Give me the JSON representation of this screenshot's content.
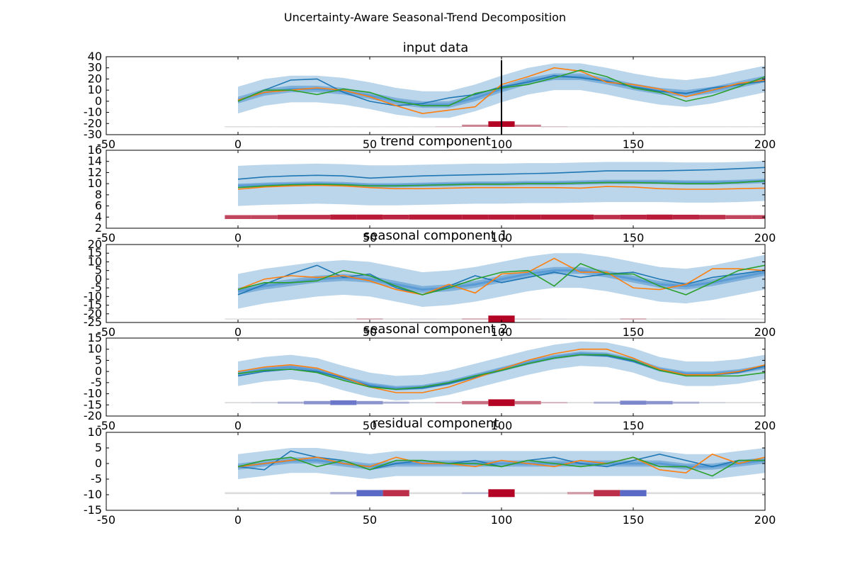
{
  "figure": {
    "suptitle": "Uncertainty-Aware Seasonal-Trend Decomposition"
  },
  "colors": {
    "band_outer": "#b7d4ea",
    "band_inner": "#6fa6d6",
    "mean": "#5a9bd5",
    "series": [
      "#1f77b4",
      "#ff7f0e",
      "#2ca02c"
    ],
    "heat_pos": "#b40426",
    "heat_neg": "#3b4cc0",
    "axis": "#000000"
  },
  "chart_data": [
    {
      "type": "line",
      "title": "input data",
      "xlim": [
        -50,
        200
      ],
      "ylim": [
        -30,
        40
      ],
      "xticks": [
        -50,
        0,
        50,
        100,
        150,
        200
      ],
      "yticks": [
        -30,
        -20,
        -10,
        0,
        10,
        20,
        30,
        40
      ],
      "x": [
        0,
        10,
        20,
        30,
        40,
        50,
        60,
        70,
        80,
        90,
        100,
        110,
        120,
        130,
        140,
        150,
        160,
        170,
        180,
        190,
        200
      ],
      "mean": [
        1,
        8,
        11,
        11,
        9,
        5,
        0,
        -3,
        -3,
        3,
        11,
        18,
        22,
        22,
        18,
        13,
        9,
        7,
        10,
        15,
        20
      ],
      "band_halfwidth": 12,
      "inner_halfwidth": 3,
      "series": [
        {
          "values": [
            0,
            10,
            19,
            20,
            8,
            0,
            -4,
            -2,
            3,
            6,
            13,
            17,
            23,
            21,
            18,
            13,
            9,
            7,
            12,
            15,
            18
          ]
        },
        {
          "values": [
            1,
            8,
            10,
            12,
            10,
            4,
            -4,
            -11,
            -8,
            -5,
            15,
            22,
            30,
            27,
            17,
            15,
            11,
            4,
            10,
            16,
            19
          ]
        },
        {
          "values": [
            0,
            10,
            10,
            6,
            11,
            8,
            0,
            -4,
            -4,
            7,
            12,
            15,
            21,
            28,
            22,
            12,
            8,
            0,
            5,
            13,
            22
          ]
        }
      ],
      "vline_x": 100,
      "heat_baseline": -23,
      "heat": [
        0,
        0,
        0,
        0,
        0,
        0,
        0,
        0,
        0.1,
        0.4,
        1,
        0.4,
        0.1,
        0,
        0,
        0,
        0,
        0,
        0,
        0,
        0
      ],
      "heat_height": 5
    },
    {
      "type": "line",
      "title": "trend component",
      "xlim": [
        -50,
        200
      ],
      "ylim": [
        2,
        16
      ],
      "xticks": [
        -50,
        0,
        50,
        100,
        150,
        200
      ],
      "yticks": [
        2,
        4,
        6,
        8,
        10,
        12,
        14,
        16
      ],
      "x": [
        0,
        10,
        20,
        30,
        40,
        50,
        60,
        70,
        80,
        90,
        100,
        110,
        120,
        130,
        140,
        150,
        160,
        170,
        180,
        190,
        200
      ],
      "mean": [
        9.6,
        9.8,
        9.9,
        10.0,
        9.9,
        9.7,
        9.7,
        9.8,
        9.9,
        10.0,
        10.0,
        10.1,
        10.1,
        10.2,
        10.3,
        10.3,
        10.3,
        10.2,
        10.2,
        10.3,
        10.5
      ],
      "band_halfwidth": 3.6,
      "inner_halfwidth": 0.4,
      "series": [
        {
          "values": [
            10.8,
            11.2,
            11.4,
            11.5,
            11.4,
            11.0,
            11.2,
            11.4,
            11.5,
            11.6,
            11.7,
            11.8,
            11.9,
            12.1,
            12.3,
            12.3,
            12.3,
            12.4,
            12.5,
            12.7,
            12.9
          ]
        },
        {
          "values": [
            9.0,
            9.4,
            9.6,
            9.7,
            9.6,
            9.3,
            9.1,
            9.1,
            9.2,
            9.3,
            9.3,
            9.3,
            9.3,
            9.2,
            9.5,
            9.4,
            9.1,
            9.0,
            9.0,
            9.1,
            9.2
          ]
        },
        {
          "values": [
            9.3,
            9.6,
            9.8,
            9.9,
            9.8,
            9.6,
            9.6,
            9.7,
            9.8,
            9.9,
            9.9,
            10.0,
            10.0,
            10.1,
            10.2,
            10.2,
            10.1,
            10.0,
            10.0,
            10.2,
            10.5
          ]
        }
      ],
      "heat_baseline": 4,
      "heat": [
        0.7,
        0.7,
        0.8,
        0.8,
        0.9,
        0.9,
        0.85,
        0.9,
        0.9,
        0.9,
        0.9,
        0.9,
        0.9,
        0.9,
        0.8,
        0.85,
        0.9,
        0.85,
        0.8,
        0.7,
        0.7
      ],
      "heat_height": 1,
      "heat_symmetric": true
    },
    {
      "type": "line",
      "title": "seasonal component 1",
      "xlim": [
        -50,
        200
      ],
      "ylim": [
        -25,
        20
      ],
      "xticks": [
        -50,
        0,
        50,
        100,
        150,
        200
      ],
      "yticks": [
        -25,
        -20,
        -15,
        -10,
        -5,
        0,
        5,
        10,
        15,
        20
      ],
      "x": [
        0,
        10,
        20,
        30,
        40,
        50,
        60,
        70,
        80,
        90,
        100,
        110,
        120,
        130,
        140,
        150,
        160,
        170,
        180,
        190,
        200
      ],
      "mean": [
        -7,
        -4,
        -2,
        0,
        1,
        0,
        -3,
        -6,
        -5,
        -3,
        0,
        3,
        5,
        5,
        3,
        0,
        -3,
        -4,
        -2,
        1,
        4
      ],
      "band_halfwidth": 10,
      "inner_halfwidth": 2,
      "series": [
        {
          "values": [
            -9,
            -3,
            3,
            8,
            1,
            3,
            -5,
            -9,
            -4,
            2,
            -2,
            1,
            4,
            1,
            3,
            4,
            0,
            -3,
            1,
            3,
            5
          ]
        },
        {
          "values": [
            -6,
            0,
            2,
            1,
            2,
            -1,
            -6,
            -9,
            -3,
            -8,
            3,
            4,
            12,
            4,
            4,
            -5,
            -6,
            -3,
            6,
            6,
            5
          ]
        },
        {
          "values": [
            -6,
            -2,
            -2,
            -1,
            5,
            2,
            -4,
            -9,
            -5,
            0,
            4,
            5,
            -4,
            9,
            3,
            3,
            -4,
            -9,
            -2,
            5,
            8
          ]
        }
      ],
      "heat_baseline": -23,
      "heat": [
        0,
        0,
        0,
        0,
        0,
        0.2,
        0,
        -0.05,
        0,
        0.2,
        1,
        0.1,
        -0.05,
        0,
        0,
        0.2,
        0,
        0,
        -0.05,
        0,
        0
      ],
      "heat_height": 4,
      "heat_symmetric": true
    },
    {
      "type": "line",
      "title": "seasonal component 2",
      "xlim": [
        -50,
        200
      ],
      "ylim": [
        -20,
        15
      ],
      "xticks": [
        -50,
        0,
        50,
        100,
        150,
        200
      ],
      "yticks": [
        -20,
        -15,
        -10,
        -5,
        0,
        5,
        10,
        15
      ],
      "x": [
        0,
        10,
        20,
        30,
        40,
        50,
        60,
        70,
        80,
        90,
        100,
        110,
        120,
        130,
        140,
        150,
        160,
        170,
        180,
        190,
        200
      ],
      "mean": [
        -1,
        1,
        2,
        0.5,
        -3,
        -6,
        -7.5,
        -7,
        -5,
        -2,
        1,
        4,
        6.5,
        8,
        7.5,
        5,
        1,
        -1,
        -1,
        0,
        2
      ],
      "band_halfwidth": 5.5,
      "inner_halfwidth": 1,
      "series": [
        {
          "values": [
            -2,
            0,
            1,
            0,
            -3,
            -6.5,
            -8,
            -7.5,
            -5.5,
            -2.5,
            0.5,
            3.5,
            6,
            7.5,
            7,
            4.5,
            0.5,
            -1.5,
            -1.5,
            -0.5,
            2.5
          ]
        },
        {
          "values": [
            0,
            2,
            3,
            1.5,
            -2.5,
            -7,
            -9.5,
            -9.5,
            -7,
            -3,
            1,
            5,
            8,
            10,
            10,
            6,
            1,
            -1.5,
            -1.5,
            0,
            3
          ]
        },
        {
          "values": [
            -1,
            0.5,
            1,
            -0.5,
            -4,
            -7,
            -8,
            -7,
            -5,
            -2,
            0.5,
            3.5,
            6,
            7.5,
            7.5,
            5,
            0.5,
            -2,
            -2,
            -2,
            -0.5
          ]
        }
      ],
      "heat_baseline": -14,
      "heat": [
        0,
        -0.1,
        -0.3,
        -0.5,
        -0.7,
        -0.5,
        -0.3,
        -0.1,
        0.2,
        0.5,
        1,
        0.5,
        0.2,
        0,
        -0.3,
        -0.6,
        -0.5,
        -0.3,
        -0.1,
        0,
        0
      ],
      "heat_height": 3,
      "heat_symmetric": true
    },
    {
      "type": "line",
      "title": "residual component",
      "xlim": [
        -50,
        200
      ],
      "ylim": [
        -15,
        10
      ],
      "xticks": [
        -50,
        0,
        50,
        100,
        150,
        200
      ],
      "yticks": [
        -15,
        -10,
        -5,
        0,
        5,
        10
      ],
      "x": [
        0,
        10,
        20,
        30,
        40,
        50,
        60,
        70,
        80,
        90,
        100,
        110,
        120,
        130,
        140,
        150,
        160,
        170,
        180,
        190,
        200
      ],
      "mean": [
        -1,
        0,
        1,
        1,
        0,
        -1,
        0,
        0,
        0,
        0,
        0,
        0,
        0,
        0,
        0,
        0,
        0,
        -1,
        -1,
        0,
        1
      ],
      "band_halfwidth": 4,
      "inner_halfwidth": 1,
      "series": [
        {
          "values": [
            -1,
            -2,
            4,
            2,
            1,
            -2,
            0,
            1,
            0,
            1,
            -1,
            1,
            2,
            0,
            -1,
            1,
            3,
            1,
            -1,
            1,
            1
          ]
        },
        {
          "values": [
            -1,
            0,
            1,
            2,
            0,
            -1,
            2,
            0,
            0,
            -1,
            1,
            0,
            -1,
            1,
            0,
            2,
            -2,
            -3,
            3,
            0,
            2
          ]
        },
        {
          "values": [
            -1,
            1,
            2,
            -1,
            1,
            -2,
            1,
            1,
            0,
            0,
            -1,
            1,
            0,
            -1,
            0,
            2,
            -1,
            -1,
            -4,
            1,
            1
          ]
        }
      ],
      "heat_baseline": -9.5,
      "heat": [
        0,
        0,
        0,
        0,
        -0.3,
        -0.8,
        0.8,
        0,
        0,
        -0.2,
        1,
        0,
        0,
        0.3,
        0.8,
        -0.8,
        0,
        0,
        0,
        0,
        0
      ],
      "heat_height": 2.5,
      "heat_symmetric": true
    }
  ]
}
